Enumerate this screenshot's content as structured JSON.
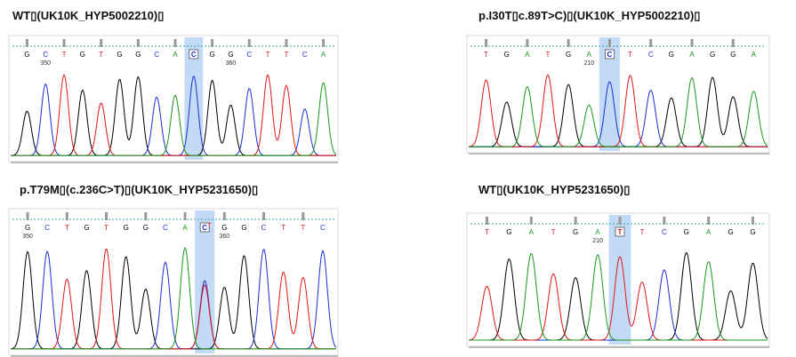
{
  "panels": [
    {
      "title": "WT▯(UK10K_HYP5002210)▯",
      "bases": [
        "G",
        "C",
        "T",
        "G",
        "T",
        "G",
        "G",
        "C",
        "A",
        "C",
        "G",
        "G",
        "C",
        "T",
        "T",
        "C",
        "A"
      ],
      "positions": [
        350,
        360
      ]
    },
    {
      "title": "p.I30T▯c.89T>C)▯(UK10K_HYP5002210)▯",
      "bases": [
        "T",
        "G",
        "A",
        "T",
        "G",
        "A",
        "C",
        "T",
        "C",
        "G",
        "A",
        "G",
        "G",
        "A"
      ],
      "positions": [
        210
      ]
    },
    {
      "title": "p.T79M▯(c.236C>T)▯(UK10K_HYP5231650)▯",
      "bases": [
        "G",
        "C",
        "T",
        "G",
        "T",
        "G",
        "G",
        "C",
        "A",
        "C",
        "G",
        "G",
        "C",
        "T",
        "T",
        "C"
      ],
      "alt_base": "T",
      "positions": [
        350,
        360
      ]
    },
    {
      "title": "WT▯(UK10K_HYP5231650)▯",
      "bases": [
        "T",
        "G",
        "A",
        "T",
        "G",
        "A",
        "T",
        "T",
        "C",
        "G",
        "A",
        "G",
        "G"
      ],
      "positions": [
        210
      ]
    }
  ]
}
